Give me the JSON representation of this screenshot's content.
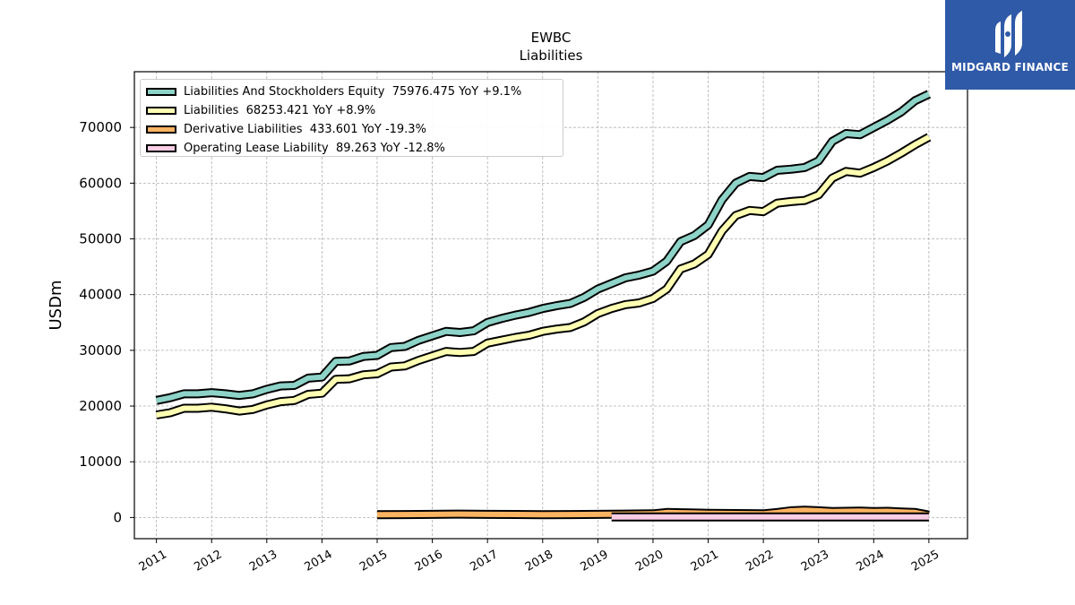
{
  "chart_data": {
    "type": "area",
    "title": "EWBC",
    "subtitle": "Liabilities",
    "ylabel": "USDm",
    "xlabel": "",
    "ylim": [
      -3800,
      80000
    ],
    "xlim": [
      2010.6,
      2025.7
    ],
    "yticks": [
      0,
      10000,
      20000,
      30000,
      40000,
      50000,
      60000,
      70000
    ],
    "xticks": [
      "2011",
      "2012",
      "2013",
      "2014",
      "2015",
      "2016",
      "2017",
      "2018",
      "2019",
      "2020",
      "2021",
      "2022",
      "2023",
      "2024",
      "2025"
    ],
    "grid": true,
    "legend_position": "top-left",
    "series": [
      {
        "name": "Liabilities And Stockholders Equity",
        "legend": "Liabilities And Stockholders Equity  75976.475 YoY +9.1%",
        "color": "#8dd3c7",
        "points": [
          [
            2011.0,
            21000
          ],
          [
            2011.25,
            21500
          ],
          [
            2011.5,
            22200
          ],
          [
            2011.75,
            22200
          ],
          [
            2012.0,
            22400
          ],
          [
            2012.25,
            22200
          ],
          [
            2012.5,
            21900
          ],
          [
            2012.75,
            22200
          ],
          [
            2013.0,
            23000
          ],
          [
            2013.25,
            23600
          ],
          [
            2013.5,
            23700
          ],
          [
            2013.75,
            25000
          ],
          [
            2014.0,
            25200
          ],
          [
            2014.25,
            28000
          ],
          [
            2014.5,
            28100
          ],
          [
            2014.75,
            28900
          ],
          [
            2015.0,
            29100
          ],
          [
            2015.25,
            30500
          ],
          [
            2015.5,
            30700
          ],
          [
            2015.75,
            31800
          ],
          [
            2016.0,
            32600
          ],
          [
            2016.25,
            33400
          ],
          [
            2016.5,
            33200
          ],
          [
            2016.75,
            33500
          ],
          [
            2017.0,
            35000
          ],
          [
            2017.25,
            35700
          ],
          [
            2017.5,
            36300
          ],
          [
            2017.75,
            36800
          ],
          [
            2018.0,
            37500
          ],
          [
            2018.25,
            38000
          ],
          [
            2018.5,
            38400
          ],
          [
            2018.75,
            39500
          ],
          [
            2019.0,
            41000
          ],
          [
            2019.25,
            42000
          ],
          [
            2019.5,
            43000
          ],
          [
            2019.75,
            43500
          ],
          [
            2020.0,
            44200
          ],
          [
            2020.25,
            46000
          ],
          [
            2020.5,
            49500
          ],
          [
            2020.75,
            50600
          ],
          [
            2021.0,
            52500
          ],
          [
            2021.25,
            57000
          ],
          [
            2021.5,
            60000
          ],
          [
            2021.75,
            61200
          ],
          [
            2022.0,
            61000
          ],
          [
            2022.25,
            62300
          ],
          [
            2022.5,
            62500
          ],
          [
            2022.75,
            62800
          ],
          [
            2023.0,
            64000
          ],
          [
            2023.25,
            67500
          ],
          [
            2023.5,
            68900
          ],
          [
            2023.75,
            68700
          ],
          [
            2024.0,
            70000
          ],
          [
            2024.25,
            71300
          ],
          [
            2024.5,
            72800
          ],
          [
            2024.75,
            74800
          ],
          [
            2025.0,
            75976
          ]
        ]
      },
      {
        "name": "Liabilities",
        "legend": "Liabilities  68253.421 YoY +8.9%",
        "color": "#ffffb3",
        "points": [
          [
            2011.0,
            18400
          ],
          [
            2011.25,
            18800
          ],
          [
            2011.5,
            19600
          ],
          [
            2011.75,
            19600
          ],
          [
            2012.0,
            19800
          ],
          [
            2012.25,
            19500
          ],
          [
            2012.5,
            19100
          ],
          [
            2012.75,
            19400
          ],
          [
            2013.0,
            20200
          ],
          [
            2013.25,
            20800
          ],
          [
            2013.5,
            21000
          ],
          [
            2013.75,
            22100
          ],
          [
            2014.0,
            22300
          ],
          [
            2014.25,
            24800
          ],
          [
            2014.5,
            24900
          ],
          [
            2014.75,
            25600
          ],
          [
            2015.0,
            25800
          ],
          [
            2015.25,
            27000
          ],
          [
            2015.5,
            27200
          ],
          [
            2015.75,
            28200
          ],
          [
            2016.0,
            29000
          ],
          [
            2016.25,
            29800
          ],
          [
            2016.5,
            29600
          ],
          [
            2016.75,
            29800
          ],
          [
            2017.0,
            31300
          ],
          [
            2017.25,
            31800
          ],
          [
            2017.5,
            32300
          ],
          [
            2017.75,
            32700
          ],
          [
            2018.0,
            33400
          ],
          [
            2018.25,
            33800
          ],
          [
            2018.5,
            34100
          ],
          [
            2018.75,
            35100
          ],
          [
            2019.0,
            36600
          ],
          [
            2019.25,
            37500
          ],
          [
            2019.5,
            38200
          ],
          [
            2019.75,
            38500
          ],
          [
            2020.0,
            39300
          ],
          [
            2020.25,
            41000
          ],
          [
            2020.5,
            44600
          ],
          [
            2020.75,
            45500
          ],
          [
            2021.0,
            47200
          ],
          [
            2021.25,
            51400
          ],
          [
            2021.5,
            54200
          ],
          [
            2021.75,
            55100
          ],
          [
            2022.0,
            54900
          ],
          [
            2022.25,
            56400
          ],
          [
            2022.5,
            56700
          ],
          [
            2022.75,
            56900
          ],
          [
            2023.0,
            57900
          ],
          [
            2023.25,
            60900
          ],
          [
            2023.5,
            62100
          ],
          [
            2023.75,
            61800
          ],
          [
            2024.0,
            62800
          ],
          [
            2024.25,
            64000
          ],
          [
            2024.5,
            65400
          ],
          [
            2024.75,
            66900
          ],
          [
            2025.0,
            68253
          ]
        ]
      },
      {
        "name": "Derivative Liabilities",
        "legend": "Derivative Liabilities  433.601 YoY -19.3%",
        "color": "#fdb462",
        "points": [
          [
            2015.0,
            500
          ],
          [
            2015.5,
            520
          ],
          [
            2016.0,
            560
          ],
          [
            2016.5,
            600
          ],
          [
            2017.0,
            560
          ],
          [
            2017.5,
            540
          ],
          [
            2018.0,
            500
          ],
          [
            2018.5,
            520
          ],
          [
            2019.0,
            560
          ],
          [
            2019.5,
            600
          ],
          [
            2020.0,
            650
          ],
          [
            2020.25,
            900
          ],
          [
            2020.5,
            850
          ],
          [
            2020.75,
            800
          ],
          [
            2021.0,
            750
          ],
          [
            2021.5,
            700
          ],
          [
            2022.0,
            650
          ],
          [
            2022.25,
            900
          ],
          [
            2022.5,
            1200
          ],
          [
            2022.75,
            1300
          ],
          [
            2023.0,
            1200
          ],
          [
            2023.25,
            1050
          ],
          [
            2023.5,
            1100
          ],
          [
            2023.75,
            1150
          ],
          [
            2024.0,
            1050
          ],
          [
            2024.25,
            1100
          ],
          [
            2024.5,
            1000
          ],
          [
            2024.75,
            900
          ],
          [
            2025.0,
            434
          ]
        ]
      },
      {
        "name": "Operating Lease Liability",
        "legend": "Operating Lease Liability  89.263 YoY -12.8%",
        "color": "#fccde5",
        "points": [
          [
            2019.25,
            110
          ],
          [
            2020.0,
            108
          ],
          [
            2021.0,
            105
          ],
          [
            2022.0,
            100
          ],
          [
            2023.0,
            98
          ],
          [
            2024.0,
            95
          ],
          [
            2025.0,
            89
          ]
        ]
      }
    ]
  },
  "logo": {
    "text": "MIDGARD FINANCE",
    "color": "#2f5aa8"
  }
}
